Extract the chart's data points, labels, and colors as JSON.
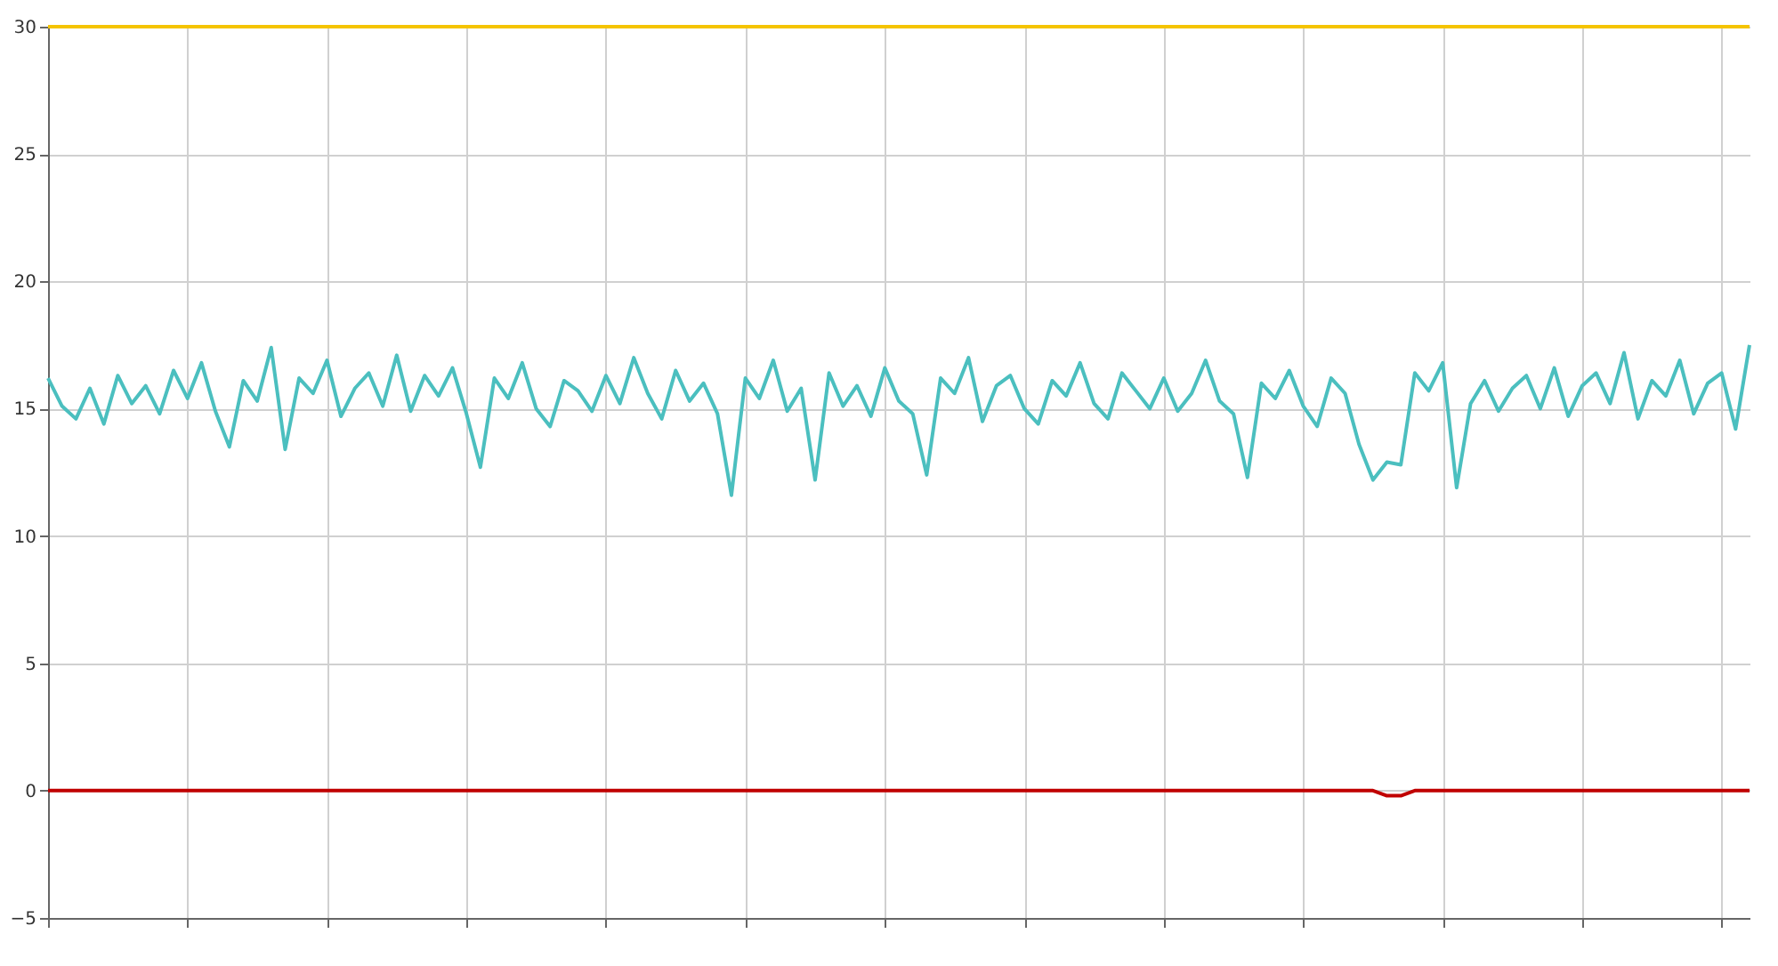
{
  "chart_data": {
    "type": "line",
    "categories": [
      null,
      null,
      null,
      null,
      null,
      null,
      null,
      null,
      null,
      null,
      null,
      null,
      null,
      null,
      null,
      null,
      null,
      null,
      null,
      null,
      null,
      null,
      null,
      null,
      null,
      null,
      null,
      null,
      null,
      null,
      null,
      null,
      null,
      null,
      null,
      null,
      null,
      null,
      null,
      null,
      null,
      null,
      null,
      null,
      null,
      null,
      null,
      null,
      null,
      null,
      null,
      null,
      null,
      null,
      null,
      null,
      null,
      null,
      null,
      null,
      null,
      null,
      null,
      null,
      null,
      null,
      null,
      null,
      null,
      null,
      null,
      null,
      null,
      null,
      null,
      null,
      null,
      null,
      null,
      null,
      null,
      null,
      null,
      null,
      null,
      null,
      null,
      null,
      null,
      null,
      null,
      null,
      null,
      null,
      null,
      null,
      null,
      null,
      null,
      null,
      null,
      null,
      null,
      null,
      null,
      null,
      null,
      null,
      null,
      null,
      null,
      null,
      null,
      null,
      null,
      null,
      null,
      null,
      null,
      null,
      null,
      null,
      null
    ],
    "series": [
      {
        "color": "#f5c400",
        "values": [
          30,
          30,
          30,
          30,
          30,
          30,
          30,
          30,
          30,
          30,
          30,
          30,
          30,
          30,
          30,
          30,
          30,
          30,
          30,
          30,
          30,
          30,
          30,
          30,
          30,
          30,
          30,
          30,
          30,
          30,
          30,
          30,
          30,
          30,
          30,
          30,
          30,
          30,
          30,
          30,
          30,
          30,
          30,
          30,
          30,
          30,
          30,
          30,
          30,
          30,
          30,
          30,
          30,
          30,
          30,
          30,
          30,
          30,
          30,
          30,
          30,
          30,
          30,
          30,
          30,
          30,
          30,
          30,
          30,
          30,
          30,
          30,
          30,
          30,
          30,
          30,
          30,
          30,
          30,
          30,
          30,
          30,
          30,
          30,
          30,
          30,
          30,
          30,
          30,
          30,
          30,
          30,
          30,
          30,
          30,
          30,
          30,
          30,
          30,
          30,
          30,
          30,
          30,
          30,
          30,
          30,
          30,
          30,
          30,
          30,
          30,
          30,
          30,
          30,
          30,
          30,
          30,
          30,
          30,
          30,
          30,
          30,
          30
        ]
      },
      {
        "color": "#4bbfbf",
        "values": [
          16.2,
          15.1,
          14.6,
          15.8,
          14.4,
          16.3,
          15.2,
          15.9,
          14.8,
          16.5,
          15.4,
          16.8,
          14.9,
          13.5,
          16.1,
          15.3,
          17.4,
          13.4,
          16.2,
          15.6,
          16.9,
          14.7,
          15.8,
          16.4,
          15.1,
          17.1,
          14.9,
          16.3,
          15.5,
          16.6,
          14.8,
          12.7,
          16.2,
          15.4,
          16.8,
          15.0,
          14.3,
          16.1,
          15.7,
          14.9,
          16.3,
          15.2,
          17.0,
          15.6,
          14.6,
          16.5,
          15.3,
          16.0,
          14.8,
          11.6,
          16.2,
          15.4,
          16.9,
          14.9,
          15.8,
          12.2,
          16.4,
          15.1,
          15.9,
          14.7,
          16.6,
          15.3,
          14.8,
          12.4,
          16.2,
          15.6,
          17.0,
          14.5,
          15.9,
          16.3,
          15.0,
          14.4,
          16.1,
          15.5,
          16.8,
          15.2,
          14.6,
          16.4,
          15.7,
          15.0,
          16.2,
          14.9,
          15.6,
          16.9,
          15.3,
          14.8,
          12.3,
          16.0,
          15.4,
          16.5,
          15.1,
          14.3,
          16.2,
          15.6,
          13.6,
          12.2,
          12.9,
          12.8,
          16.4,
          15.7,
          16.8,
          11.9,
          15.2,
          16.1,
          14.9,
          15.8,
          16.3,
          15.0,
          16.6,
          14.7,
          15.9,
          16.4,
          15.2,
          17.2,
          14.6,
          16.1,
          15.5,
          16.9,
          14.8,
          16.0,
          16.4,
          14.2,
          17.5
        ]
      },
      {
        "color": "#c00000",
        "values": [
          0,
          0,
          0,
          0,
          0,
          0,
          0,
          0,
          0,
          0,
          0,
          0,
          0,
          0,
          0,
          0,
          0,
          0,
          0,
          0,
          0,
          0,
          0,
          0,
          0,
          0,
          0,
          0,
          0,
          0,
          0,
          0,
          0,
          0,
          0,
          0,
          0,
          0,
          0,
          0,
          0,
          0,
          0,
          0,
          0,
          0,
          0,
          0,
          0,
          0,
          0,
          0,
          0,
          0,
          0,
          0,
          0,
          0,
          0,
          0,
          0,
          0,
          0,
          0,
          0,
          0,
          0,
          0,
          0,
          0,
          0,
          0,
          0,
          0,
          0,
          0,
          0,
          0,
          0,
          0,
          0,
          0,
          0,
          0,
          0,
          0,
          0,
          0,
          0,
          0,
          0,
          0,
          0,
          0,
          0,
          0,
          -0.2,
          -0.2,
          0,
          0,
          0,
          0,
          0,
          0,
          0,
          0,
          0,
          0,
          0,
          0,
          0,
          0,
          0,
          0,
          0,
          0,
          0,
          0,
          0,
          0,
          0,
          0,
          0
        ]
      }
    ],
    "ylim": [
      -5,
      30
    ],
    "yticks": [
      -5,
      0,
      5,
      10,
      15,
      20,
      25,
      30
    ],
    "grid": true,
    "marker": "none",
    "line_style": "solid"
  }
}
